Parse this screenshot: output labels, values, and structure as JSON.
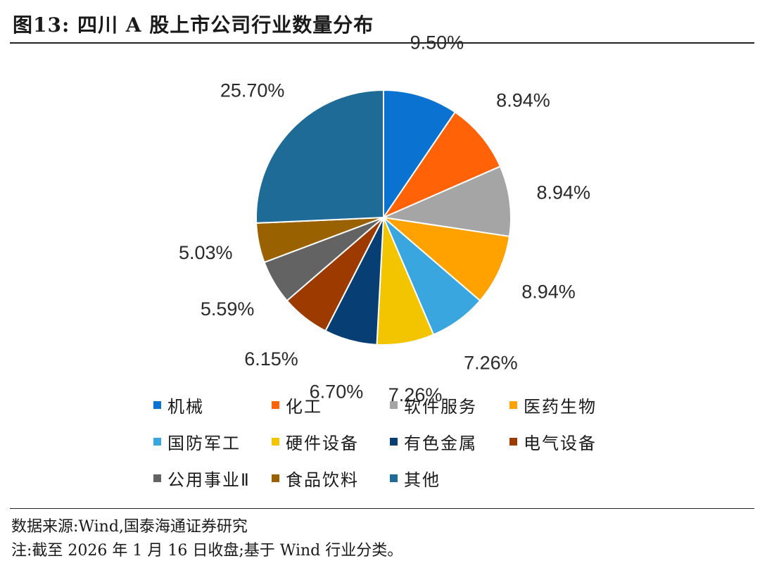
{
  "figure": {
    "title": "图13: 四川 A 股上市公司行业数量分布"
  },
  "chart_data": {
    "type": "pie",
    "title": "",
    "slices": [
      {
        "label": "机械",
        "value": 9.5,
        "value_label": "9.50%",
        "color": "#0a72d1"
      },
      {
        "label": "化工",
        "value": 8.94,
        "value_label": "8.94%",
        "color": "#ff6207"
      },
      {
        "label": "软件服务",
        "value": 8.94,
        "value_label": "8.94%",
        "color": "#a5a5a5"
      },
      {
        "label": "医药生物",
        "value": 8.94,
        "value_label": "8.94%",
        "color": "#ffa200"
      },
      {
        "label": "国防军工",
        "value": 7.26,
        "value_label": "7.26%",
        "color": "#3aa6e0"
      },
      {
        "label": "硬件设备",
        "value": 7.26,
        "value_label": "7.26%",
        "color": "#f2c500"
      },
      {
        "label": "有色金属",
        "value": 6.7,
        "value_label": "6.70%",
        "color": "#073e73"
      },
      {
        "label": "电气设备",
        "value": 6.15,
        "value_label": "6.15%",
        "color": "#9c3a00"
      },
      {
        "label": "公用事业Ⅱ",
        "value": 5.59,
        "value_label": "5.59%",
        "color": "#636363"
      },
      {
        "label": "食品饮料",
        "value": 5.03,
        "value_label": "5.03%",
        "color": "#9a6100"
      },
      {
        "label": "其他",
        "value": 25.7,
        "value_label": "25.70%",
        "color": "#1f6b98"
      }
    ],
    "legend_position": "bottom",
    "start": "12 o'clock, clockwise"
  },
  "footer": {
    "source": "数据来源:Wind,国泰海通证券研究",
    "note": "注:截至 2026 年 1 月 16 日收盘;基于 Wind 行业分类。"
  }
}
